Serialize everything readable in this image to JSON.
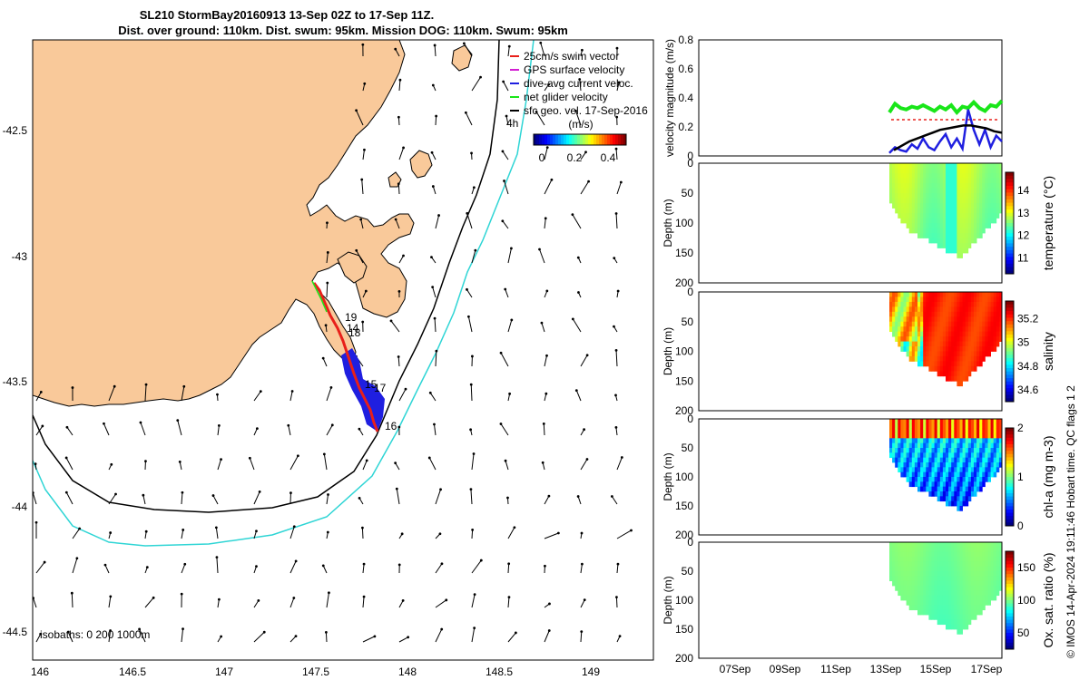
{
  "title": {
    "line1": "SL210 StormBay20160913 13-Sep 02Z to 17-Sep 11Z.",
    "line2": "Dist. over ground: 110km. Dist. swum: 95km. Mission DOG: 110km. Swum: 95km"
  },
  "map": {
    "lon_ticks": [
      "146",
      "146.5",
      "147",
      "147.5",
      "148",
      "148.5",
      "149"
    ],
    "lat_ticks": [
      "-42.5",
      "-43",
      "-43.5",
      "-44",
      "-44.5"
    ],
    "xlim": [
      145.98,
      149.35
    ],
    "ylim": [
      -44.6,
      -42.15
    ],
    "land_color": "#f9c99a",
    "track_color": "#e8201a",
    "legend": [
      {
        "label": "25cm/s swim vector",
        "color": "#e8201a"
      },
      {
        "label": "GPS surface velocity",
        "color": "#d21fd2"
      },
      {
        "label": "dive-avg current veloc.",
        "color": "#1f1fe0"
      },
      {
        "label": "net glider velocity",
        "color": "#19e619"
      },
      {
        "label": "sfc geo. vel. 17-Sep-2016",
        "color": "#000000"
      }
    ],
    "colorbar": {
      "title": "(m/s)",
      "ticks": [
        "0",
        "0.2",
        "0.4"
      ],
      "range": [
        0,
        0.5
      ]
    },
    "time_label": "4h",
    "day_labels": [
      "19",
      "14",
      "18",
      "15",
      "17",
      "16"
    ],
    "isobaths_label": "isobaths: 0   200  1000m"
  },
  "chart_data": [
    {
      "type": "line",
      "ylabel": "velocity magnitude (m/s)",
      "ylim": [
        0,
        0.8
      ],
      "yticks": [
        "0",
        "0.2",
        "0.4",
        "0.6",
        "0.8"
      ],
      "series": [
        {
          "color": "#19e619",
          "values": [
            0.3,
            0.36,
            0.33,
            0.32,
            0.34,
            0.33,
            0.35,
            0.33,
            0.31,
            0.34,
            0.32,
            0.35,
            0.3,
            0.34,
            0.33,
            0.37,
            0.33,
            0.31,
            0.35,
            0.34,
            0.38
          ]
        },
        {
          "color": "#1f1fe0",
          "values": [
            0.02,
            0.06,
            0.04,
            0.03,
            0.08,
            0.05,
            0.12,
            0.06,
            0.04,
            0.1,
            0.15,
            0.06,
            0.12,
            0.05,
            0.32,
            0.18,
            0.08,
            0.18,
            0.06,
            0.14,
            0.1
          ]
        },
        {
          "color": "#000000",
          "values": [
            0.04,
            0.07,
            0.1,
            0.12,
            0.14,
            0.16,
            0.18,
            0.19,
            0.2,
            0.21,
            0.21,
            0.2,
            0.19,
            0.17,
            0.16
          ]
        }
      ]
    },
    {
      "type": "heatmap",
      "ylabel": "Depth (m)",
      "cblabel": "temperature (°C)",
      "cbticks": [
        "11",
        "12",
        "13",
        "14"
      ],
      "cbrange": [
        10.3,
        14.8
      ]
    },
    {
      "type": "heatmap",
      "ylabel": "Depth (m)",
      "cblabel": "salinity",
      "cbticks": [
        "34.6",
        "34.8",
        "35",
        "35.2"
      ],
      "cbrange": [
        34.5,
        35.35
      ]
    },
    {
      "type": "heatmap",
      "ylabel": "Depth (m)",
      "cblabel": "chl-a (mg m-3)",
      "cbticks": [
        "0",
        "1",
        "2"
      ],
      "cbrange": [
        0,
        2
      ]
    },
    {
      "type": "heatmap",
      "ylabel": "Depth (m)",
      "cblabel": "Ox. sat. ratio (%)",
      "cbticks": [
        "50",
        "100",
        "150"
      ],
      "cbrange": [
        25,
        175
      ]
    }
  ],
  "profiles": {
    "depth_ticks": [
      "0",
      "50",
      "100",
      "150",
      "200"
    ],
    "date_ticks": [
      "07Sep",
      "09Sep",
      "11Sep",
      "13Sep",
      "15Sep",
      "17Sep"
    ]
  },
  "side_text": "© IMOS 14-Apr-2024 19:11:46 Hobart time. QC flags 1  2"
}
